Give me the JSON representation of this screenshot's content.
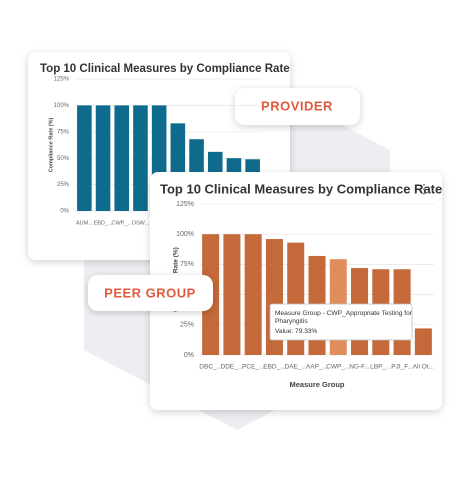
{
  "chart_data": [
    {
      "type": "bar",
      "title": "Top 10 Clinical Measures by Compliance Rate",
      "y_label": "Compliance Rate (%)",
      "categories": [
        "AUM...",
        "EBD_...",
        "CWP_...",
        "OSW...",
        null,
        null,
        null,
        null,
        null,
        null
      ],
      "values": [
        100,
        100,
        100,
        100,
        100,
        83,
        68,
        56,
        50,
        49
      ],
      "color": "#0f6b8e",
      "ylim": [
        0,
        125
      ],
      "yticks": [
        {
          "value": 0,
          "label": "0%"
        },
        {
          "value": 25,
          "label": "25%"
        },
        {
          "value": 50,
          "label": "50%"
        },
        {
          "value": 75,
          "label": "75%"
        },
        {
          "value": 100,
          "label": "100%"
        },
        {
          "value": 125,
          "label": "125%"
        }
      ],
      "grid": true
    },
    {
      "type": "bar",
      "title": "Top 10 Clinical Measures by Compliance Rate",
      "y_label": "Compliance Rate (%)",
      "x_label": "Measure Group",
      "categories": [
        "DBC_...",
        "DDE_...",
        "PCE_...",
        "EBD_...",
        "DAE_...",
        "AAP_...",
        "CWP_...",
        "NG-F...",
        "LBP_...",
        "PJI_F...",
        "All Ot..."
      ],
      "values": [
        100,
        100,
        100,
        96,
        93,
        82,
        79.33,
        72,
        71,
        71,
        22
      ],
      "colors": [
        "#c4693a",
        "#c4693a",
        "#c4693a",
        "#c4693a",
        "#c4693a",
        "#c4693a",
        "#e08d5e",
        "#c4693a",
        "#c4693a",
        "#c4693a",
        "#c4693a"
      ],
      "ylim": [
        0,
        125
      ],
      "yticks": [
        {
          "value": 0,
          "label": "0%"
        },
        {
          "value": 25,
          "label": "25%"
        },
        {
          "value": 50,
          "label": "50%"
        },
        {
          "value": 75,
          "label": "75%"
        },
        {
          "value": 100,
          "label": "100%"
        },
        {
          "value": 125,
          "label": "125%"
        }
      ],
      "grid": true,
      "tooltip": {
        "title": "Measure Group - CWP_Appropriate Testing for Pharyngitis",
        "value": "Value: 79.33%"
      }
    }
  ],
  "badges": {
    "provider": "PROVIDER",
    "peer_group": "PEER GROUP"
  }
}
